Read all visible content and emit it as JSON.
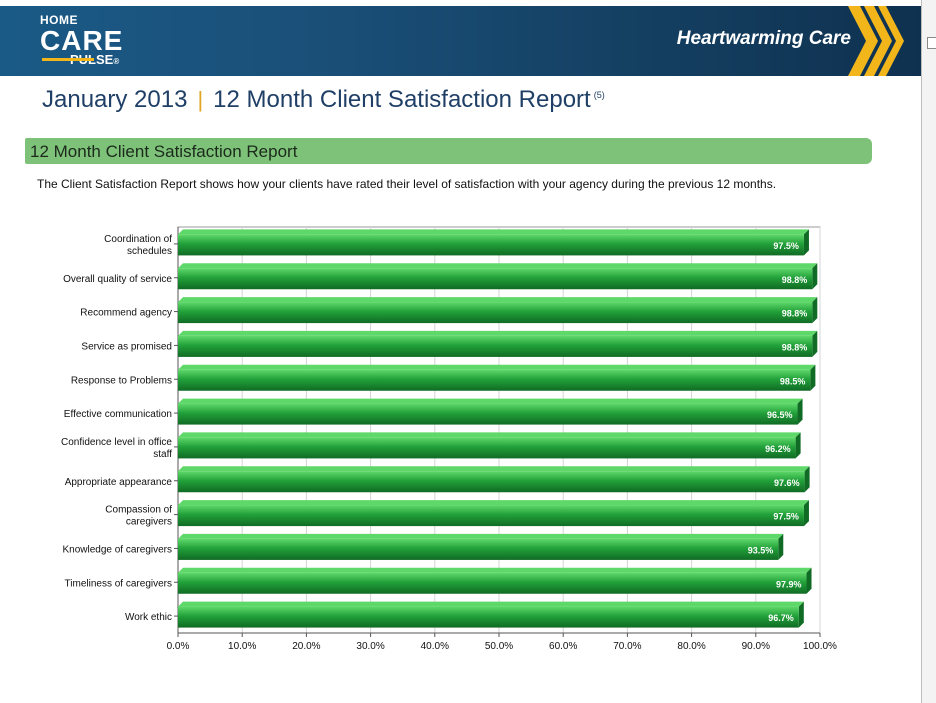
{
  "header": {
    "logo": {
      "home": "HOME",
      "care": "CARE",
      "pulse": "PULSE",
      "mark": "®"
    },
    "tagline": "Heartwarming Care"
  },
  "report": {
    "month": "January 2013",
    "separator": "|",
    "title": "12 Month Client Satisfaction Report",
    "superscript": "(5)"
  },
  "section": {
    "heading": "12 Month Client Satisfaction Report",
    "description": "The Client Satisfaction Report shows how your clients have rated their level of satisfaction with your agency during the previous 12 months."
  },
  "colors": {
    "banner": "#1a4f78",
    "accent": "#f2b61b",
    "section_bar": "#7ec27a",
    "bar_light": "#5fd86a",
    "bar_mid": "#22a13a",
    "bar_dark": "#106b24"
  },
  "chart_data": {
    "type": "bar",
    "orientation": "horizontal",
    "categories": [
      [
        "Coordination of",
        "schedules"
      ],
      [
        "Overall quality of service"
      ],
      [
        "Recommend agency"
      ],
      [
        "Service as promised"
      ],
      [
        "Response to Problems"
      ],
      [
        "Effective communication"
      ],
      [
        "Confidence level in office",
        "staff"
      ],
      [
        "Appropriate appearance"
      ],
      [
        "Compassion of",
        "caregivers"
      ],
      [
        "Knowledge of caregivers"
      ],
      [
        "Timeliness of caregivers"
      ],
      [
        "Work ethic"
      ]
    ],
    "values": [
      97.5,
      98.8,
      98.8,
      98.8,
      98.5,
      96.5,
      96.2,
      97.6,
      97.5,
      93.5,
      97.9,
      96.7
    ],
    "value_labels": [
      "97.5%",
      "98.8%",
      "98.8%",
      "98.8%",
      "98.5%",
      "96.5%",
      "96.2%",
      "97.6%",
      "97.5%",
      "93.5%",
      "97.9%",
      "96.7%"
    ],
    "xlim": [
      0,
      100
    ],
    "xticks": [
      0,
      10,
      20,
      30,
      40,
      50,
      60,
      70,
      80,
      90,
      100
    ],
    "xtick_labels": [
      "0.0%",
      "10.0%",
      "20.0%",
      "30.0%",
      "40.0%",
      "50.0%",
      "60.0%",
      "70.0%",
      "80.0%",
      "90.0%",
      "100.0%"
    ],
    "grid": true,
    "legend": "none"
  }
}
